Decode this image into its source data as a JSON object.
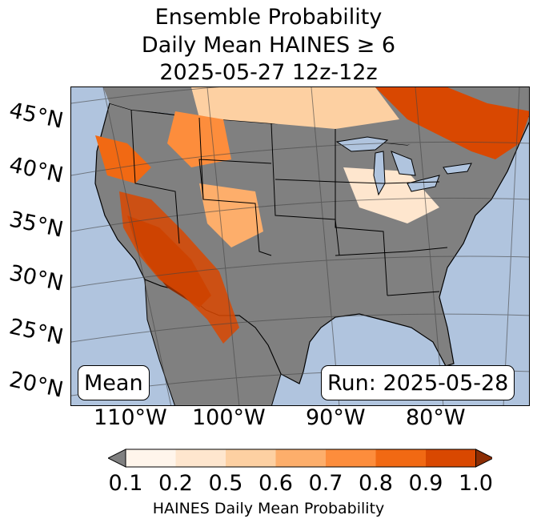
{
  "title": {
    "line1": "Ensemble Probability",
    "line2": "Daily Mean HAINES ≥ 6",
    "line3": "2025-05-27 12z-12z"
  },
  "map": {
    "lat_labels": [
      "45°N",
      "40°N",
      "35°N",
      "30°N",
      "25°N",
      "20°N"
    ],
    "lon_labels": [
      "110°W",
      "100°W",
      "90°W",
      "80°W"
    ],
    "panel_label_left": "Mean",
    "panel_label_right": "Run: 2025-05-28",
    "colors": {
      "ocean": "#b0c4de",
      "nodata_gray": "#808080",
      "border": "#000000"
    }
  },
  "colorbar": {
    "tick_labels": [
      "0.1",
      "0.2",
      "0.5",
      "0.6",
      "0.7",
      "0.8",
      "0.9",
      "1.0"
    ],
    "colors": [
      "#808080",
      "#fff5eb",
      "#fee6ce",
      "#fdd0a2",
      "#fdae6b",
      "#fd8d3c",
      "#f16913",
      "#d94801",
      "#8c2d04"
    ],
    "label": "HAINES Daily Mean Probability"
  }
}
